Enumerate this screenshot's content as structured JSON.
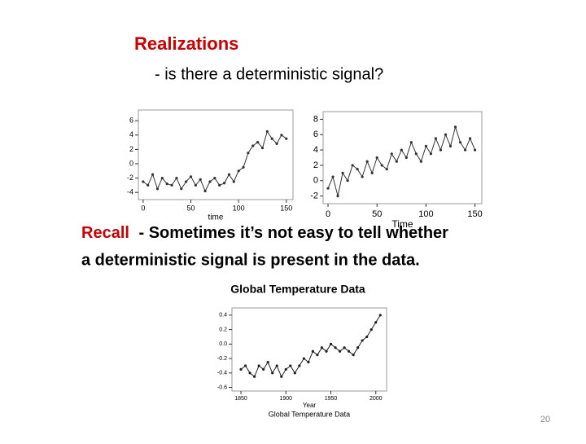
{
  "slide": {
    "title": "Realizations",
    "subtitle": "- is there a deterministic signal?",
    "recall": {
      "lead": "Recall",
      "line1": "- Sometimes it’s not easy to tell whether",
      "line2": "a deterministic signal is present in the data."
    },
    "caption": "Global Temperature Data",
    "page_number": "20"
  },
  "chart_data": [
    {
      "type": "line",
      "x_label": "time",
      "x": [
        0,
        5,
        10,
        15,
        20,
        25,
        30,
        35,
        40,
        45,
        50,
        55,
        60,
        65,
        70,
        75,
        80,
        85,
        90,
        95,
        100,
        105,
        110,
        115,
        120,
        125,
        130,
        135,
        140,
        145,
        150
      ],
      "series": [
        {
          "color": "#333333",
          "values": [
            -2.5,
            -3,
            -1.5,
            -3.5,
            -2,
            -2.8,
            -3,
            -2,
            -3.5,
            -2.5,
            -1.8,
            -3,
            -2.2,
            -3.8,
            -2.5,
            -2,
            -3,
            -2.7,
            -1.5,
            -2.5,
            -1,
            -0.5,
            1.5,
            2.5,
            3,
            2.2,
            4.5,
            3.5,
            2.8,
            4,
            3.5
          ]
        }
      ],
      "xlim": [
        -5,
        157
      ],
      "xticks": [
        0,
        50,
        100,
        150
      ],
      "ylim": [
        -5,
        7.5
      ],
      "yticks": [
        -4,
        -2,
        0,
        2,
        4,
        6
      ]
    },
    {
      "type": "line",
      "x_label": "Time",
      "x": [
        0,
        5,
        10,
        15,
        20,
        25,
        30,
        35,
        40,
        45,
        50,
        55,
        60,
        65,
        70,
        75,
        80,
        85,
        90,
        95,
        100,
        105,
        110,
        115,
        120,
        125,
        130,
        135,
        140,
        145,
        150
      ],
      "series": [
        {
          "color": "#333333",
          "values": [
            -1,
            0.5,
            -2,
            1,
            0,
            2,
            1.5,
            0.5,
            2.5,
            1,
            3,
            2,
            1.5,
            3.5,
            2.5,
            4,
            3,
            5,
            3.5,
            2.5,
            4.5,
            3.5,
            5.5,
            4,
            6,
            4.5,
            7,
            5,
            4,
            5.5,
            4
          ]
        }
      ],
      "xlim": [
        -5,
        157
      ],
      "xticks": [
        0,
        50,
        100,
        150
      ],
      "ylim": [
        -3,
        9
      ],
      "yticks": [
        -2,
        0,
        2,
        4,
        6,
        8
      ]
    },
    {
      "type": "line",
      "x_label": "Year",
      "title": "Global Temperature Data",
      "x": [
        1850,
        1855,
        1860,
        1865,
        1870,
        1875,
        1880,
        1885,
        1890,
        1895,
        1900,
        1905,
        1910,
        1915,
        1920,
        1925,
        1930,
        1935,
        1940,
        1945,
        1950,
        1955,
        1960,
        1965,
        1970,
        1975,
        1980,
        1985,
        1990,
        1995,
        2000,
        2005
      ],
      "series": [
        {
          "color": "#222222",
          "values": [
            -0.35,
            -0.3,
            -0.4,
            -0.45,
            -0.3,
            -0.35,
            -0.25,
            -0.4,
            -0.3,
            -0.45,
            -0.35,
            -0.3,
            -0.4,
            -0.3,
            -0.2,
            -0.25,
            -0.1,
            -0.15,
            -0.05,
            -0.1,
            0.0,
            -0.05,
            -0.1,
            -0.05,
            -0.1,
            -0.15,
            -0.05,
            0.05,
            0.1,
            0.2,
            0.3,
            0.4
          ]
        }
      ],
      "xlim": [
        1840,
        2012
      ],
      "xticks": [
        1850,
        1900,
        1950,
        2000
      ],
      "ylim": [
        -0.65,
        0.5
      ],
      "yticks": [
        0.4,
        0.2,
        {
          "value": 0,
          "label": "0.0"
        },
        -0.2,
        -0.4,
        -0.6
      ]
    }
  ]
}
